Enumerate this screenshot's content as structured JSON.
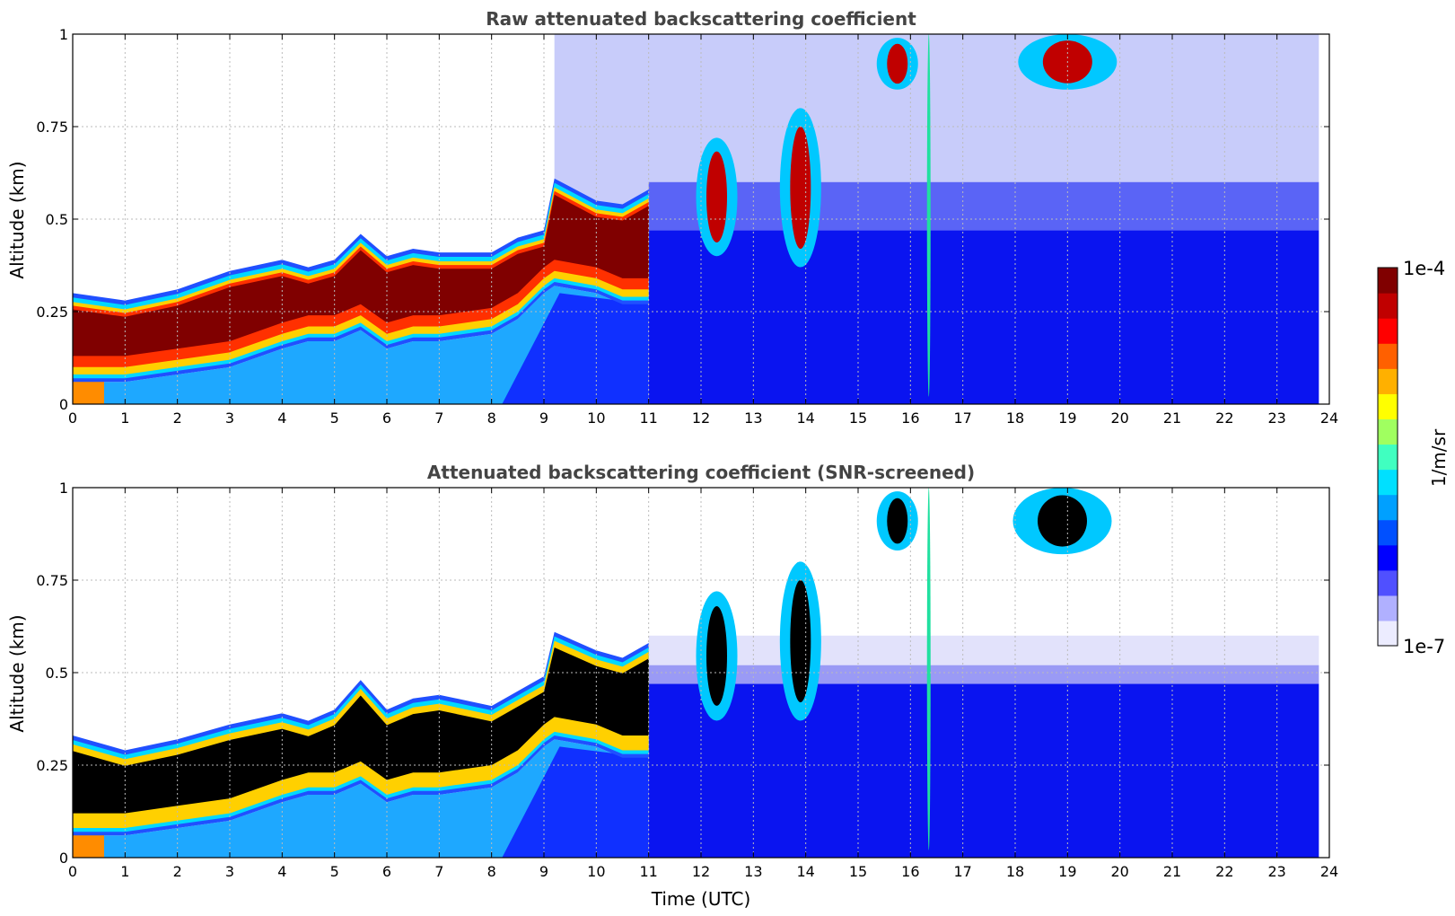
{
  "chart_data": [
    {
      "type": "heatmap",
      "title": "Raw attenuated backscattering coefficient",
      "xlabel": "",
      "ylabel": "Altitude (km)",
      "xlim": [
        0,
        24
      ],
      "ylim": [
        0,
        1
      ],
      "xticks": [
        "0",
        "1",
        "2",
        "3",
        "4",
        "5",
        "6",
        "7",
        "8",
        "9",
        "10",
        "11",
        "12",
        "13",
        "14",
        "15",
        "16",
        "17",
        "18",
        "19",
        "20",
        "21",
        "22",
        "23",
        "24"
      ],
      "yticks": [
        "0",
        "0.25",
        "0.5",
        "0.75",
        "1"
      ],
      "grid": true,
      "screened": false,
      "layer": {
        "x": [
          0,
          1,
          2,
          3,
          4,
          4.5,
          5,
          5.5,
          6,
          6.5,
          7,
          8,
          8.5,
          9,
          9.2,
          10,
          10.5,
          11
        ],
        "top": [
          0.27,
          0.25,
          0.28,
          0.33,
          0.36,
          0.34,
          0.36,
          0.43,
          0.37,
          0.39,
          0.38,
          0.38,
          0.42,
          0.44,
          0.58,
          0.52,
          0.51,
          0.55
        ],
        "bottom": [
          0.06,
          0.06,
          0.08,
          0.1,
          0.15,
          0.17,
          0.17,
          0.2,
          0.15,
          0.17,
          0.17,
          0.19,
          0.23,
          0.3,
          0.32,
          0.3,
          0.27,
          0.27
        ]
      },
      "clouds": [
        {
          "x": 12.3,
          "bottom": 0.4,
          "top": 0.72
        },
        {
          "x": 13.9,
          "bottom": 0.37,
          "top": 0.8
        },
        {
          "x": 15.75,
          "bottom": 0.85,
          "top": 0.99
        },
        {
          "x": 16.35,
          "bottom": 0.02,
          "top": 1.0
        },
        {
          "x": 19.0,
          "bottom": 0.85,
          "top": 1.0
        }
      ]
    },
    {
      "type": "heatmap",
      "title": "Attenuated backscattering coefficient (SNR-screened)",
      "xlabel": "Time (UTC)",
      "ylabel": "Altitude (km)",
      "xlim": [
        0,
        24
      ],
      "ylim": [
        0,
        1
      ],
      "xticks": [
        "0",
        "1",
        "2",
        "3",
        "4",
        "5",
        "6",
        "7",
        "8",
        "9",
        "10",
        "11",
        "12",
        "13",
        "14",
        "15",
        "16",
        "17",
        "18",
        "19",
        "20",
        "21",
        "22",
        "23",
        "24"
      ],
      "yticks": [
        "0",
        "0.25",
        "0.5",
        "0.75",
        "1"
      ],
      "grid": true,
      "screened": true,
      "layer": {
        "x": [
          0,
          1,
          2,
          3,
          4,
          4.5,
          5,
          5.5,
          6,
          6.5,
          7,
          8,
          8.5,
          9,
          9.2,
          10,
          10.5,
          11
        ],
        "top": [
          0.3,
          0.26,
          0.29,
          0.33,
          0.36,
          0.34,
          0.37,
          0.45,
          0.37,
          0.4,
          0.41,
          0.38,
          0.42,
          0.46,
          0.58,
          0.53,
          0.51,
          0.55
        ],
        "bottom": [
          0.06,
          0.06,
          0.08,
          0.1,
          0.15,
          0.17,
          0.17,
          0.2,
          0.15,
          0.17,
          0.17,
          0.19,
          0.23,
          0.3,
          0.32,
          0.3,
          0.27,
          0.27
        ]
      },
      "clouds": [
        {
          "x": 12.3,
          "bottom": 0.37,
          "top": 0.72
        },
        {
          "x": 13.9,
          "bottom": 0.37,
          "top": 0.8
        },
        {
          "x": 15.75,
          "bottom": 0.83,
          "top": 0.99
        },
        {
          "x": 16.35,
          "bottom": 0.02,
          "top": 1.0
        },
        {
          "x": 18.9,
          "bottom": 0.82,
          "top": 1.0
        }
      ]
    }
  ],
  "colorbar": {
    "label": "1/m/sr",
    "max_label": "1e-4",
    "min_label": "1e-7",
    "scale": "log",
    "colors": [
      "#ececff",
      "#b0b0ff",
      "#5050ff",
      "#0000ff",
      "#0050ff",
      "#00a0ff",
      "#00e0ff",
      "#40ffc0",
      "#a0ff60",
      "#ffff00",
      "#ffb000",
      "#ff6000",
      "#ff0000",
      "#c00000",
      "#800000"
    ]
  }
}
